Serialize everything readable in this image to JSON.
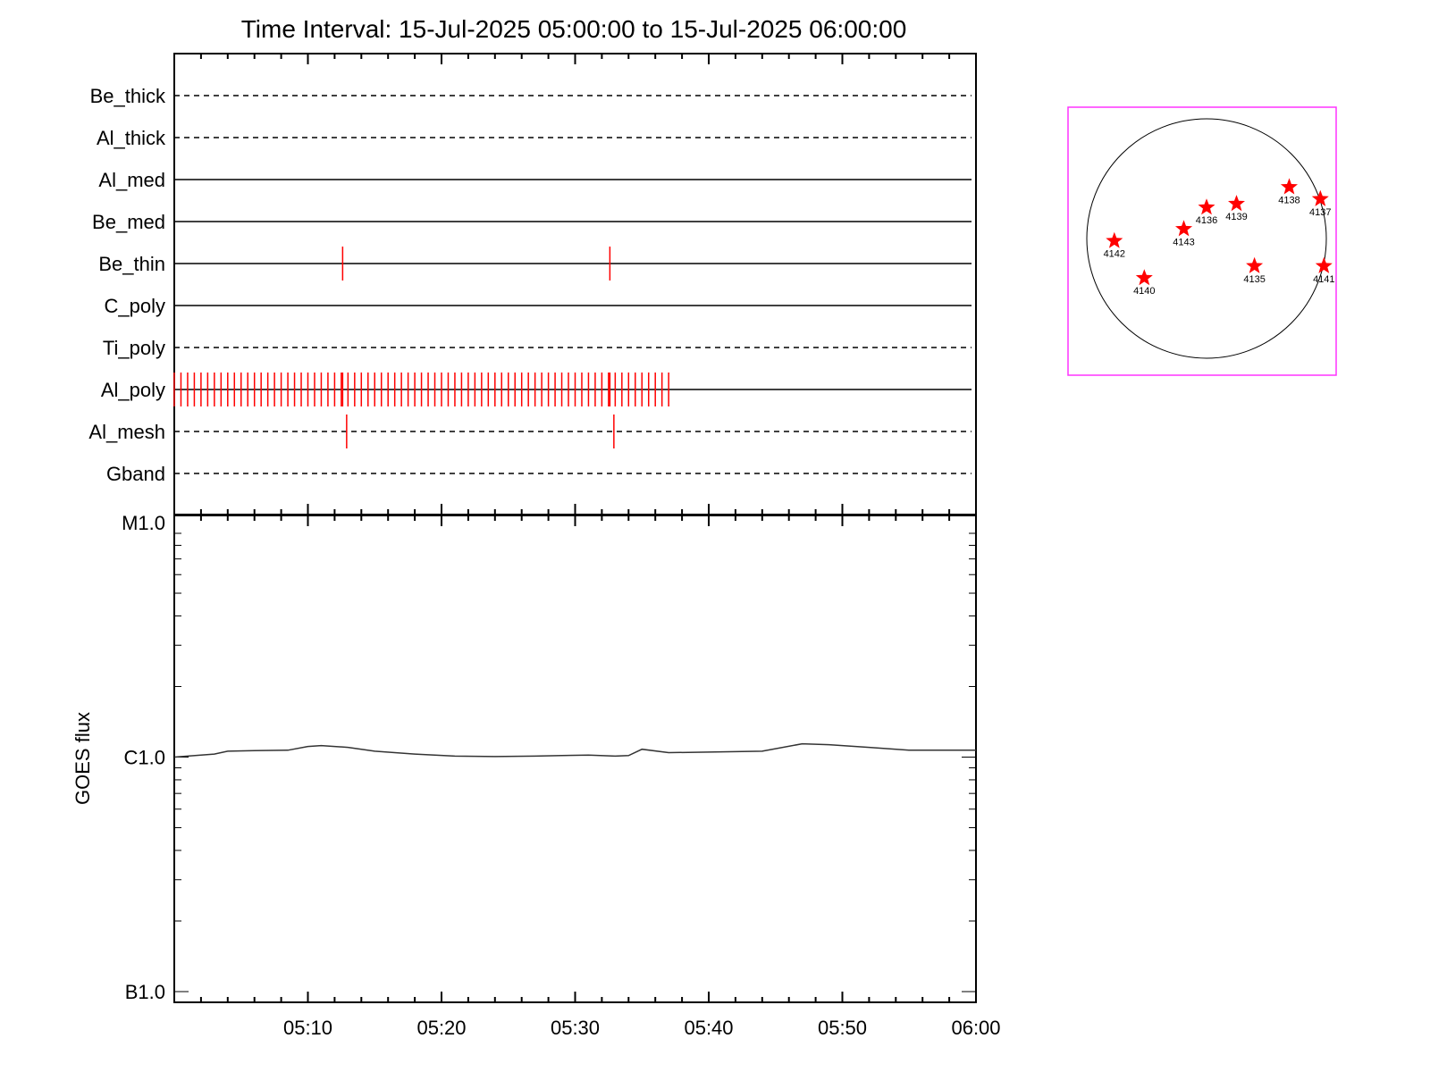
{
  "chart_data": [
    {
      "type": "timeline",
      "title": "Time Interval: 15-Jul-2025 05:00:00 to 15-Jul-2025 06:00:00",
      "time_range": [
        "05:00",
        "06:00"
      ],
      "channels": [
        {
          "name": "Be_thick",
          "style": "dashed",
          "events": []
        },
        {
          "name": "Al_thick",
          "style": "dashed",
          "events": []
        },
        {
          "name": "Al_med",
          "style": "solid",
          "events": []
        },
        {
          "name": "Be_med",
          "style": "solid",
          "events": []
        },
        {
          "name": "Be_thin",
          "style": "solid",
          "events": [
            12.6,
            32.6
          ]
        },
        {
          "name": "C_poly",
          "style": "solid",
          "events": []
        },
        {
          "name": "Ti_poly",
          "style": "dashed",
          "events": []
        },
        {
          "name": "Al_poly",
          "style": "solid",
          "events": [],
          "dense_events": {
            "start": 0.0,
            "end": 37.2,
            "step": 0.5
          },
          "extra_events": [
            12.6,
            32.6
          ]
        },
        {
          "name": "Al_mesh",
          "style": "dashed",
          "events": [
            12.9,
            32.9
          ]
        },
        {
          "name": "Gband",
          "style": "dashed",
          "events": []
        }
      ],
      "event_color": "#ff0000"
    },
    {
      "type": "line",
      "ylabel": "GOES flux",
      "yscale": "log",
      "ylim": [
        1e-07,
        1e-05
      ],
      "yticks": [
        {
          "value": 1e-05,
          "label": "M1.0"
        },
        {
          "value": 1e-06,
          "label": "C1.0"
        },
        {
          "value": 1e-07,
          "label": "B1.0"
        }
      ],
      "xticks": [
        "05:10",
        "05:20",
        "05:30",
        "05:40",
        "05:50",
        "06:00"
      ],
      "xlim": [
        0,
        60
      ],
      "series": [
        {
          "x": [
            0,
            1,
            3,
            4,
            6,
            8.5,
            10,
            11,
            13,
            15,
            18,
            21,
            24,
            27,
            29,
            31,
            33,
            34,
            35,
            37,
            40,
            44,
            47,
            49,
            52,
            55,
            57,
            60
          ],
          "values": [
            1e-06,
            1.01e-06,
            1.03e-06,
            1.06e-06,
            1.065e-06,
            1.07e-06,
            1.11e-06,
            1.12e-06,
            1.1e-06,
            1.06e-06,
            1.03e-06,
            1.01e-06,
            1.005e-06,
            1.01e-06,
            1.015e-06,
            1.02e-06,
            1.01e-06,
            1.015e-06,
            1.08e-06,
            1.045e-06,
            1.05e-06,
            1.06e-06,
            1.14e-06,
            1.13e-06,
            1.1e-06,
            1.07e-06,
            1.07e-06,
            1.07e-06
          ],
          "color": "#000000"
        }
      ]
    },
    {
      "type": "scatter",
      "subtype": "solar-disk-map",
      "marker_color": "#ff0000",
      "frame_color": "#ff33ff",
      "points": [
        {
          "label": "4136",
          "x": 0.0,
          "y": 0.26
        },
        {
          "label": "4139",
          "x": 0.25,
          "y": 0.29
        },
        {
          "label": "4138",
          "x": 0.69,
          "y": 0.43
        },
        {
          "label": "4137",
          "x": 0.95,
          "y": 0.33
        },
        {
          "label": "4143",
          "x": -0.19,
          "y": 0.08
        },
        {
          "label": "4142",
          "x": -0.77,
          "y": -0.02
        },
        {
          "label": "4135",
          "x": 0.4,
          "y": -0.23
        },
        {
          "label": "4141",
          "x": 0.98,
          "y": -0.23
        },
        {
          "label": "4140",
          "x": -0.52,
          "y": -0.33
        }
      ]
    }
  ]
}
